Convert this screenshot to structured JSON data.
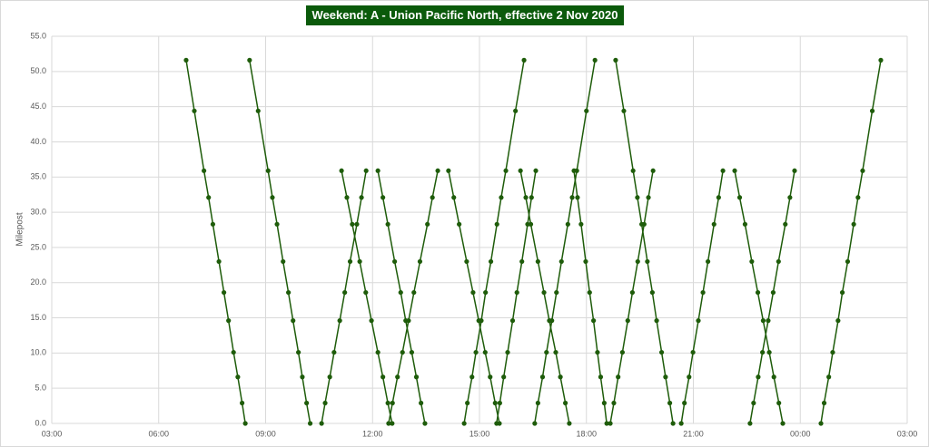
{
  "chart_data": {
    "type": "line",
    "title": "Weekend: A - Union Pacific North, effective 2 Nov 2020",
    "y_label": "Milepost",
    "color": "#1e5c0a",
    "grid": true,
    "xlim": [
      3,
      27
    ],
    "xticks": [
      {
        "value": 3,
        "label": "03:00"
      },
      {
        "value": 6,
        "label": "06:00"
      },
      {
        "value": 9,
        "label": "09:00"
      },
      {
        "value": 12,
        "label": "12:00"
      },
      {
        "value": 15,
        "label": "15:00"
      },
      {
        "value": 18,
        "label": "18:00"
      },
      {
        "value": 21,
        "label": "21:00"
      },
      {
        "value": 24,
        "label": "00:00"
      },
      {
        "value": 27,
        "label": "03:00"
      }
    ],
    "ylim": [
      0,
      55
    ],
    "yticks": [
      {
        "value": 0,
        "label": "0.0"
      },
      {
        "value": 5,
        "label": "5.0"
      },
      {
        "value": 10,
        "label": "10.0"
      },
      {
        "value": 15,
        "label": "15.0"
      },
      {
        "value": 20,
        "label": "20.0"
      },
      {
        "value": 25,
        "label": "25.0"
      },
      {
        "value": 30,
        "label": "30.0"
      },
      {
        "value": 35,
        "label": "35.0"
      },
      {
        "value": 40,
        "label": "40.0"
      },
      {
        "value": 45,
        "label": "45.0"
      },
      {
        "value": 50,
        "label": "50.0"
      },
      {
        "value": 55,
        "label": "55.0"
      }
    ],
    "series": [
      {
        "x": [
          6.77,
          7.0,
          7.27,
          7.4,
          7.52,
          7.69,
          7.83,
          7.96,
          8.1,
          8.22,
          8.34,
          8.43
        ],
        "values": [
          51.6,
          44.4,
          35.9,
          32.1,
          28.3,
          23.0,
          18.6,
          14.6,
          10.1,
          6.6,
          2.9,
          0
        ]
      },
      {
        "x": [
          8.55,
          8.79,
          9.07,
          9.19,
          9.32,
          9.49,
          9.64,
          9.77,
          9.92,
          10.03,
          10.15,
          10.25
        ],
        "values": [
          51.6,
          44.4,
          35.9,
          32.1,
          28.3,
          23.0,
          18.6,
          14.6,
          10.1,
          6.6,
          2.9,
          0
        ]
      },
      {
        "x": [
          10.57,
          10.67,
          10.8,
          10.92,
          11.08,
          11.22,
          11.37,
          11.56,
          11.69,
          11.82
        ],
        "values": [
          0,
          2.9,
          6.6,
          10.1,
          14.6,
          18.6,
          23.0,
          28.3,
          32.1,
          35.9
        ]
      },
      {
        "x": [
          11.13,
          11.28,
          11.43,
          11.64,
          11.81,
          11.97,
          12.15,
          12.29,
          12.43,
          12.55
        ],
        "values": [
          35.9,
          32.1,
          28.3,
          23.0,
          18.6,
          14.6,
          10.1,
          6.6,
          2.9,
          0
        ]
      },
      {
        "x": [
          12.15,
          12.29,
          12.43,
          12.62,
          12.79,
          12.93,
          13.1,
          13.23,
          13.36,
          13.47
        ],
        "values": [
          35.9,
          32.1,
          28.3,
          23.0,
          18.6,
          14.6,
          10.1,
          6.6,
          2.9,
          0
        ]
      },
      {
        "x": [
          12.45,
          12.56,
          12.7,
          12.84,
          13.01,
          13.16,
          13.33,
          13.54,
          13.68,
          13.83
        ],
        "values": [
          0,
          2.9,
          6.6,
          10.1,
          14.6,
          18.6,
          23.0,
          28.3,
          32.1,
          35.9
        ]
      },
      {
        "x": [
          14.13,
          14.28,
          14.43,
          14.64,
          14.82,
          14.98,
          15.16,
          15.3,
          15.44,
          15.56
        ],
        "values": [
          35.9,
          32.1,
          28.3,
          23.0,
          18.6,
          14.6,
          10.1,
          6.6,
          2.9,
          0
        ]
      },
      {
        "x": [
          14.57,
          14.66,
          14.79,
          14.9,
          15.05,
          15.17,
          15.32,
          15.49,
          15.61,
          15.74,
          16.01,
          16.25
        ],
        "values": [
          0,
          2.9,
          6.6,
          10.1,
          14.6,
          18.6,
          23.0,
          28.3,
          32.1,
          35.9,
          44.4,
          51.6
        ]
      },
      {
        "x": [
          15.48,
          15.57,
          15.68,
          15.79,
          15.93,
          16.05,
          16.19,
          16.35,
          16.46,
          16.58
        ],
        "values": [
          0,
          2.9,
          6.6,
          10.1,
          14.6,
          18.6,
          23.0,
          28.3,
          32.1,
          35.9
        ]
      },
      {
        "x": [
          16.15,
          16.3,
          16.44,
          16.64,
          16.81,
          16.96,
          17.14,
          17.27,
          17.41,
          17.52
        ],
        "values": [
          35.9,
          32.1,
          28.3,
          23.0,
          18.6,
          14.6,
          10.1,
          6.6,
          2.9,
          0
        ]
      },
      {
        "x": [
          16.55,
          16.64,
          16.77,
          16.88,
          17.03,
          17.16,
          17.3,
          17.48,
          17.6,
          17.73,
          18.0,
          18.24
        ],
        "values": [
          0,
          2.9,
          6.6,
          10.1,
          14.6,
          18.6,
          23.0,
          28.3,
          32.1,
          35.9,
          44.4,
          51.6
        ]
      },
      {
        "x": [
          17.65,
          17.75,
          17.85,
          17.98,
          18.09,
          18.2,
          18.31,
          18.4,
          18.5,
          18.57
        ],
        "values": [
          35.9,
          32.1,
          28.3,
          23.0,
          18.6,
          14.6,
          10.1,
          6.6,
          2.9,
          0
        ]
      },
      {
        "x": [
          18.67,
          18.77,
          18.89,
          19.01,
          19.16,
          19.29,
          19.44,
          19.62,
          19.74,
          19.87
        ],
        "values": [
          0,
          2.9,
          6.6,
          10.1,
          14.6,
          18.6,
          23.0,
          28.3,
          32.1,
          35.9
        ]
      },
      {
        "x": [
          18.82,
          19.05,
          19.31,
          19.43,
          19.55,
          19.71,
          19.85,
          19.97,
          20.11,
          20.22,
          20.34,
          20.43
        ],
        "values": [
          51.6,
          44.4,
          35.9,
          32.1,
          28.3,
          23.0,
          18.6,
          14.6,
          10.1,
          6.6,
          2.9,
          0
        ]
      },
      {
        "x": [
          20.66,
          20.75,
          20.88,
          20.99,
          21.14,
          21.27,
          21.41,
          21.58,
          21.71,
          21.83
        ],
        "values": [
          0,
          2.9,
          6.6,
          10.1,
          14.6,
          18.6,
          23.0,
          28.3,
          32.1,
          35.9
        ]
      },
      {
        "x": [
          22.16,
          22.3,
          22.45,
          22.64,
          22.81,
          22.96,
          23.13,
          23.26,
          23.4,
          23.51
        ],
        "values": [
          35.9,
          32.1,
          28.3,
          23.0,
          18.6,
          14.6,
          10.1,
          6.6,
          2.9,
          0
        ]
      },
      {
        "x": [
          22.59,
          22.69,
          22.82,
          22.94,
          23.1,
          23.24,
          23.39,
          23.58,
          23.71,
          23.84
        ],
        "values": [
          0,
          2.9,
          6.6,
          10.1,
          14.6,
          18.6,
          23.0,
          28.3,
          32.1,
          35.9
        ]
      },
      {
        "x": [
          24.58,
          24.67,
          24.8,
          24.91,
          25.06,
          25.18,
          25.33,
          25.5,
          25.62,
          25.75,
          26.02,
          26.26
        ],
        "values": [
          0,
          2.9,
          6.6,
          10.1,
          14.6,
          18.6,
          23.0,
          28.3,
          32.1,
          35.9,
          44.4,
          51.6
        ]
      }
    ]
  }
}
